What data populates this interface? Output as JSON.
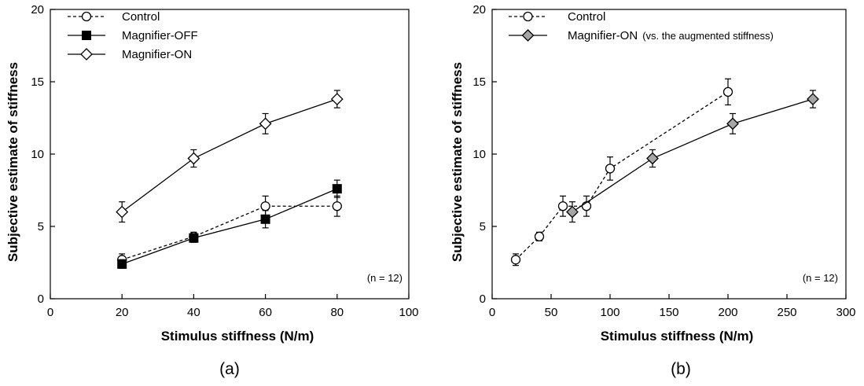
{
  "chart_data": [
    {
      "type": "line",
      "panel_label": "(a)",
      "xlabel": "Stimulus stiffness (N/m)",
      "ylabel": "Subjective estimate of stiffness",
      "xlim": [
        0,
        100
      ],
      "ylim": [
        0,
        20
      ],
      "xticks": [
        0,
        20,
        40,
        60,
        80,
        100
      ],
      "yticks": [
        0,
        5,
        10,
        15,
        20
      ],
      "grid": false,
      "legend_position": "top-left",
      "annotation": "(n = 12)",
      "series": [
        {
          "name": "Control",
          "marker": "open-circle",
          "line": "dashed",
          "x": [
            20,
            40,
            60,
            80
          ],
          "y": [
            2.7,
            4.3,
            6.4,
            6.4
          ],
          "err": [
            0.4,
            0.3,
            0.7,
            0.7
          ]
        },
        {
          "name": "Magnifier-OFF",
          "marker": "filled-square",
          "line": "solid",
          "x": [
            20,
            40,
            60,
            80
          ],
          "y": [
            2.4,
            4.2,
            5.5,
            7.6
          ],
          "err": [
            0.3,
            0.3,
            0.6,
            0.6
          ]
        },
        {
          "name": "Magnifier-ON",
          "marker": "open-diamond",
          "line": "solid",
          "x": [
            20,
            40,
            60,
            80
          ],
          "y": [
            6.0,
            9.7,
            12.1,
            13.8
          ],
          "err": [
            0.7,
            0.6,
            0.7,
            0.6
          ]
        }
      ]
    },
    {
      "type": "line",
      "panel_label": "(b)",
      "xlabel": "Stimulus stiffness (N/m)",
      "ylabel": "Subjective estimate of stiffness",
      "xlim": [
        0,
        300
      ],
      "ylim": [
        0,
        20
      ],
      "xticks": [
        0,
        50,
        100,
        150,
        200,
        250,
        300
      ],
      "yticks": [
        0,
        5,
        10,
        15,
        20
      ],
      "grid": false,
      "legend_position": "top-left",
      "annotation": "(n = 12)",
      "series": [
        {
          "name": "Control",
          "marker": "open-circle",
          "line": "dashed",
          "x": [
            20,
            40,
            60,
            80,
            100,
            200
          ],
          "y": [
            2.7,
            4.3,
            6.4,
            6.4,
            9.0,
            14.3
          ],
          "err": [
            0.4,
            0.3,
            0.7,
            0.7,
            0.8,
            0.9
          ]
        },
        {
          "name": "Magnifier-ON",
          "name_suffix": "(vs. the augmented stiffness)",
          "marker": "gray-diamond",
          "line": "solid",
          "x": [
            68,
            136,
            204,
            272
          ],
          "y": [
            6.0,
            9.7,
            12.1,
            13.8
          ],
          "err": [
            0.7,
            0.6,
            0.7,
            0.6
          ]
        }
      ]
    }
  ]
}
